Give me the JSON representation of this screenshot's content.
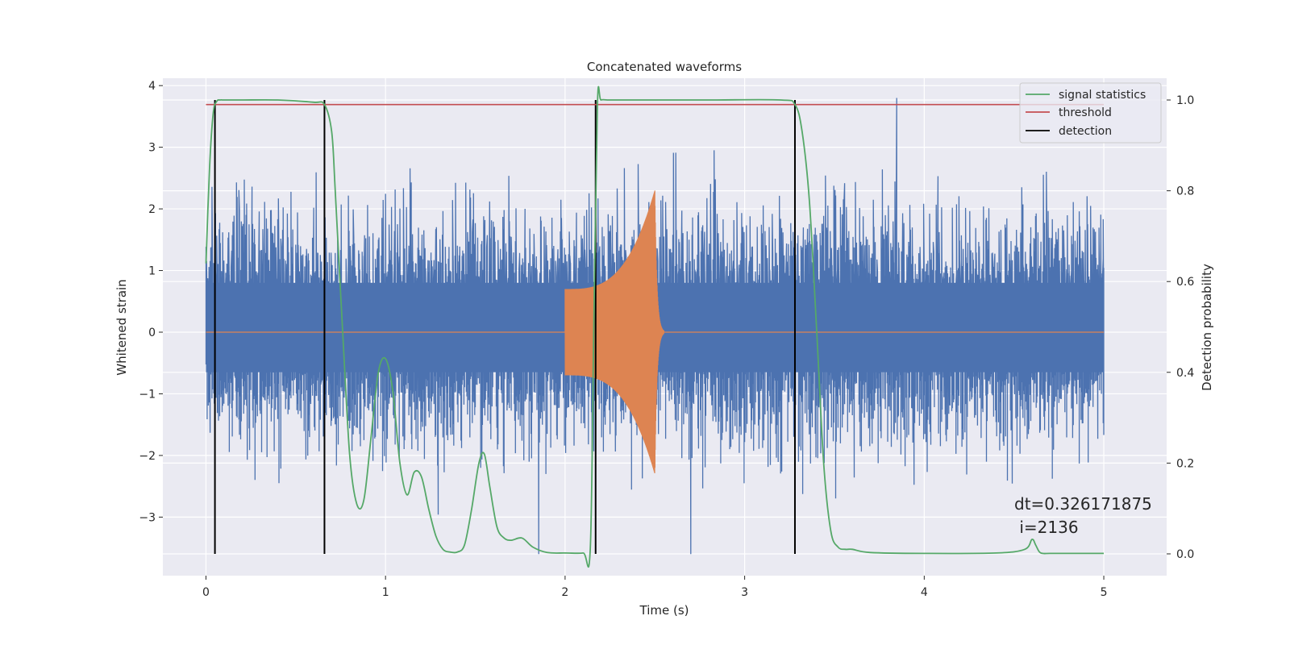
{
  "chart_data": {
    "type": "line",
    "title": "Concatenated waveforms",
    "xlabel": "Time (s)",
    "ylabel": "Whitened strain",
    "y2label": "Detection probability",
    "xlim": [
      -0.24,
      5.35
    ],
    "ylim": [
      -3.95,
      4.12
    ],
    "y2lim": [
      -0.048,
      1.048
    ],
    "x_ticks": [
      0,
      1,
      2,
      3,
      4,
      5
    ],
    "x_tick_labels": [
      "0",
      "1",
      "2",
      "3",
      "4",
      "5"
    ],
    "y_ticks": [
      -3,
      -2,
      -1,
      0,
      1,
      2,
      3,
      4
    ],
    "y_tick_labels": [
      "−3",
      "−2",
      "−1",
      "0",
      "1",
      "2",
      "3",
      "4"
    ],
    "y2_ticks": [
      0,
      0.2,
      0.4,
      0.6,
      0.8,
      1.0
    ],
    "y2_tick_labels": [
      "0.0",
      "0.2",
      "0.4",
      "0.6",
      "0.8",
      "1.0"
    ],
    "grid": true,
    "legend_position": "top-right",
    "legend": [
      {
        "label": "signal statistics",
        "color": "#55a868"
      },
      {
        "label": "threshold",
        "color": "#c44e52"
      },
      {
        "label": "detection",
        "color": "#000000"
      }
    ],
    "annotation": {
      "line1": "dt=0.326171875",
      "line2": " i=2136"
    },
    "colors": {
      "strain": "#4c72b0",
      "template": "#dd8452",
      "signal_statistics": "#55a868",
      "threshold": "#c44e52",
      "detection": "#000000",
      "axes_background": "#eaeaf2"
    },
    "strain_noise": {
      "x_range": [
        0,
        5
      ],
      "typical_range": [
        -2.9,
        3.8
      ],
      "extremes": [
        -3.6,
        3.8
      ]
    },
    "template_chirp": {
      "start": 2.0,
      "merger": 2.5,
      "end": 2.55,
      "peak_amplitude": 2.3,
      "initial_amplitude": 0.7
    },
    "threshold": {
      "x": [
        0,
        5
      ],
      "y": 0.99
    },
    "detections_x": [
      0.05,
      0.66,
      2.17,
      3.28
    ],
    "signal_statistics": {
      "x": [
        0.0,
        0.02,
        0.04,
        0.06,
        0.08,
        0.1,
        0.2,
        0.4,
        0.6,
        0.66,
        0.7,
        0.72,
        0.76,
        0.8,
        0.84,
        0.88,
        0.92,
        0.96,
        1.0,
        1.04,
        1.08,
        1.12,
        1.16,
        1.2,
        1.24,
        1.28,
        1.32,
        1.36,
        1.4,
        1.44,
        1.48,
        1.52,
        1.55,
        1.58,
        1.62,
        1.66,
        1.7,
        1.76,
        1.82,
        1.9,
        2.0,
        2.1,
        2.14,
        2.16,
        2.18,
        2.2,
        2.25,
        2.4,
        2.8,
        3.2,
        3.28,
        3.32,
        3.36,
        3.4,
        3.44,
        3.48,
        3.52,
        3.56,
        3.6,
        3.7,
        4.0,
        4.4,
        4.56,
        4.6,
        4.62,
        4.64,
        4.66,
        4.7,
        4.8,
        5.0
      ],
      "y": [
        0.64,
        0.85,
        0.97,
        0.997,
        1.0,
        1.0,
        1.0,
        1.0,
        0.995,
        0.99,
        0.93,
        0.8,
        0.5,
        0.22,
        0.11,
        0.12,
        0.26,
        0.4,
        0.43,
        0.36,
        0.2,
        0.13,
        0.18,
        0.17,
        0.1,
        0.04,
        0.01,
        0.004,
        0.004,
        0.02,
        0.1,
        0.2,
        0.22,
        0.15,
        0.06,
        0.035,
        0.03,
        0.035,
        0.015,
        0.003,
        0.002,
        0.002,
        0.01,
        0.5,
        0.99,
        1.0,
        1.0,
        1.0,
        1.0,
        1.0,
        0.99,
        0.93,
        0.78,
        0.5,
        0.2,
        0.05,
        0.015,
        0.01,
        0.01,
        0.003,
        0.001,
        0.002,
        0.01,
        0.032,
        0.02,
        0.005,
        0.001,
        0.001,
        0.001,
        0.001
      ]
    }
  }
}
